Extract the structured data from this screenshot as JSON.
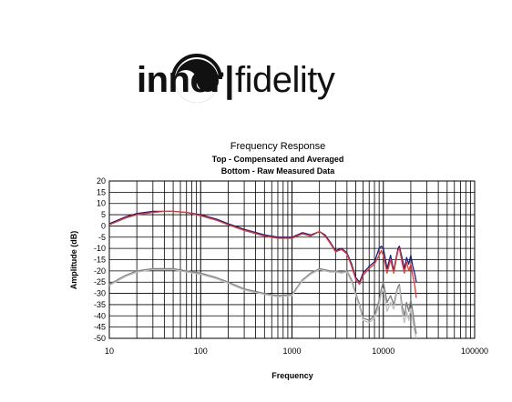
{
  "brand": {
    "left": "inner",
    "separator": "|",
    "right": "fidelity",
    "logo_icon": "yin-yang-headphones-icon"
  },
  "chart_data": {
    "type": "line",
    "title": "Frequency Response",
    "subtitle_1": "Top -  Compensated and Averaged",
    "subtitle_2": "Bottom - Raw Measured Data",
    "xlabel": "Frequency",
    "ylabel": "Amplitude (dB)",
    "xscale": "log",
    "xlim": [
      10,
      100000
    ],
    "ylim": [
      -50,
      20
    ],
    "grid": true,
    "legend": "none",
    "xticks": [
      "10",
      "100",
      "1000",
      "10000",
      "100000"
    ],
    "yticks": [
      "20",
      "15",
      "10",
      "5",
      "0",
      "-5",
      "-10",
      "-15",
      "-20",
      "-25",
      "-30",
      "-35",
      "-40",
      "-45",
      "-50"
    ],
    "series": [
      {
        "color": "#1a237e",
        "x": [
          10,
          15,
          20,
          30,
          40,
          50,
          70,
          100,
          150,
          200,
          300,
          500,
          700,
          1000,
          1300,
          1600,
          2000,
          2300,
          2600,
          3000,
          3500,
          4000,
          4500,
          5000,
          5500,
          6000,
          7000,
          8000,
          9000,
          9500,
          10000,
          11000,
          12000,
          13000,
          14000,
          14500,
          15000,
          16000,
          17000,
          18000,
          19000,
          20000,
          21000,
          22000,
          23000
        ],
        "values": [
          1,
          4,
          5.5,
          6.5,
          6.5,
          6.5,
          6,
          5,
          3,
          1,
          -1.5,
          -4,
          -5,
          -5,
          -3,
          -4,
          -2.5,
          -4,
          -7,
          -11,
          -10,
          -12,
          -17,
          -23,
          -25,
          -21,
          -18,
          -16,
          -10,
          -9,
          -10,
          -19,
          -13,
          -20,
          -13,
          -10,
          -9,
          -14,
          -19,
          -14,
          -17,
          -13,
          -18,
          -21,
          -25
        ]
      },
      {
        "color": "#e53935",
        "x": [
          10,
          15,
          20,
          30,
          40,
          50,
          70,
          100,
          150,
          200,
          300,
          500,
          700,
          1000,
          1300,
          1600,
          2000,
          2300,
          2600,
          3000,
          3500,
          4000,
          4500,
          5000,
          5500,
          6000,
          7000,
          8000,
          9000,
          9500,
          10000,
          11000,
          12000,
          13000,
          14000,
          14500,
          15000,
          16000,
          17000,
          18000,
          19000,
          20000,
          21000,
          22000,
          23000
        ],
        "values": [
          0.5,
          3.5,
          5,
          6,
          6.5,
          6.5,
          6,
          4.5,
          2.5,
          0.5,
          -2,
          -4.5,
          -5.5,
          -5.5,
          -3.5,
          -4.5,
          -2.5,
          -4.5,
          -7.5,
          -11.5,
          -10.5,
          -12.5,
          -18,
          -24,
          -26,
          -22,
          -19,
          -17,
          -13,
          -11,
          -13,
          -21,
          -15,
          -21,
          -14,
          -11,
          -10,
          -16,
          -21,
          -16,
          -20,
          -17,
          -22,
          -26,
          -32
        ]
      },
      {
        "color": "#7f7f7f",
        "x": [
          10,
          15,
          20,
          30,
          40,
          50,
          70,
          100,
          150,
          200,
          300,
          500,
          700,
          1000,
          1300,
          1600,
          2000,
          2300,
          2600,
          3000,
          3500,
          4000,
          4500,
          5000,
          5500,
          6000,
          7000,
          8000,
          9000,
          9500,
          10000,
          11000,
          12000,
          13000,
          14000,
          14500,
          15000,
          16000,
          17000,
          18000,
          19000,
          20000,
          21000,
          22000,
          23000
        ],
        "values": [
          -26,
          -22,
          -20,
          -19,
          -19,
          -19,
          -20,
          -21,
          -23,
          -25,
          -28,
          -30,
          -31,
          -30.5,
          -24,
          -21,
          -19,
          -19.5,
          -20,
          -20,
          -20.5,
          -20,
          -24,
          -30,
          -35,
          -41,
          -42,
          -40,
          -33,
          -28,
          -25,
          -34,
          -31,
          -35,
          -29,
          -27,
          -26,
          -35,
          -40,
          -34,
          -38,
          -33,
          -38,
          -44,
          -48
        ]
      },
      {
        "color": "#bdbdbd",
        "x": [
          10,
          15,
          20,
          30,
          40,
          50,
          70,
          100,
          150,
          200,
          300,
          500,
          700,
          1000,
          1300,
          1600,
          2000,
          2300,
          2600,
          3000,
          3500,
          4000,
          4500,
          5000,
          5500,
          6000,
          7000,
          8000,
          9000,
          9500,
          10000,
          11000,
          12000,
          13000,
          14000,
          14500,
          15000,
          16000,
          17000,
          18000,
          19000,
          20000,
          21000,
          22000,
          23000
        ],
        "values": [
          -26.5,
          -22.5,
          -20.5,
          -19.5,
          -19.5,
          -19.5,
          -20.5,
          -21.5,
          -23.5,
          -25.5,
          -28.5,
          -30.5,
          -31.5,
          -31,
          -24.5,
          -21.5,
          -19.5,
          -20,
          -20.5,
          -20.5,
          -21,
          -20.5,
          -25,
          -31,
          -36,
          -42,
          -43,
          -41,
          -35,
          -30,
          -28,
          -38,
          -34,
          -37,
          -30,
          -28,
          -27,
          -38,
          -43,
          -38,
          -42,
          -37,
          -42,
          -47,
          -50
        ]
      }
    ]
  }
}
